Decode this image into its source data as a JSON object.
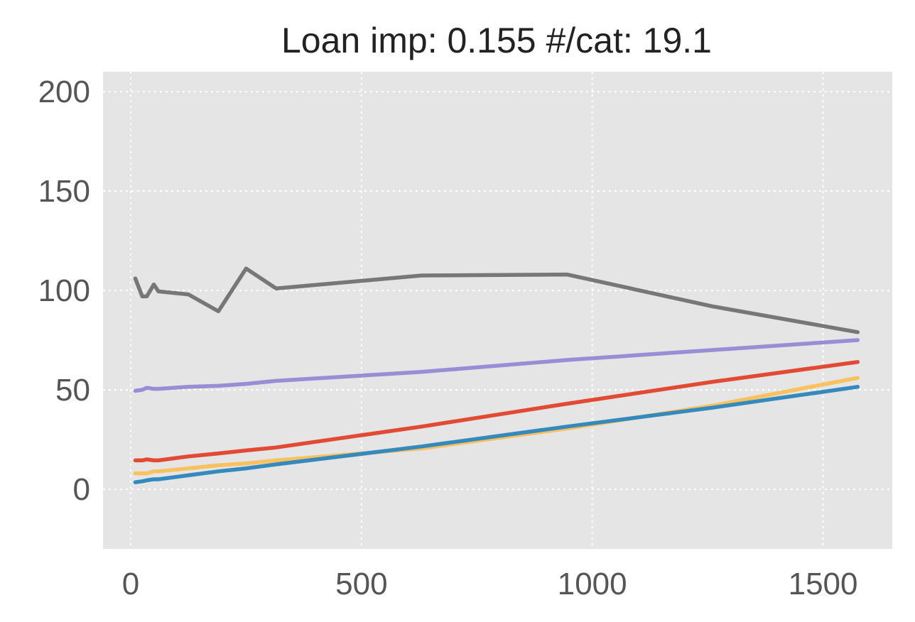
{
  "chart_data": {
    "type": "line",
    "title": "Loan imp: 0.155 #/cat: 19.1",
    "xlabel": "",
    "ylabel": "",
    "xlim": [
      -60,
      1650
    ],
    "ylim": [
      -30,
      210
    ],
    "xticks": [
      0,
      500,
      1000,
      1500
    ],
    "yticks": [
      0,
      50,
      100,
      150,
      200
    ],
    "grid": true,
    "style": "ggplot",
    "background_color": "#E5E5E5",
    "series": [
      {
        "color": "#777777",
        "x": [
          10,
          25,
          35,
          50,
          60,
          125,
          190,
          250,
          315,
          630,
          945,
          1260,
          1575
        ],
        "y": [
          106,
          97,
          97,
          103,
          99.5,
          98,
          89.5,
          111,
          101,
          107.5,
          108,
          92,
          79
        ]
      },
      {
        "color": "#988ED5",
        "x": [
          10,
          25,
          35,
          50,
          60,
          125,
          190,
          250,
          315,
          630,
          945,
          1260,
          1575
        ],
        "y": [
          49.5,
          50,
          51,
          50.5,
          50.5,
          51.5,
          52,
          53,
          54.5,
          59,
          65,
          70,
          75
        ]
      },
      {
        "color": "#E24A33",
        "x": [
          10,
          25,
          35,
          50,
          60,
          125,
          190,
          250,
          315,
          630,
          945,
          1260,
          1575
        ],
        "y": [
          14.5,
          14.5,
          15,
          14.5,
          14.5,
          16.5,
          18,
          19.5,
          21,
          31.5,
          43,
          54,
          64
        ]
      },
      {
        "color": "#FBC15E",
        "x": [
          10,
          25,
          35,
          50,
          60,
          125,
          190,
          250,
          315,
          630,
          945,
          1260,
          1575
        ],
        "y": [
          8,
          8,
          8,
          9,
          9,
          10.5,
          12,
          13,
          14.5,
          20.5,
          30.5,
          42,
          56
        ]
      },
      {
        "color": "#348ABD",
        "x": [
          10,
          25,
          35,
          50,
          60,
          125,
          190,
          250,
          315,
          630,
          945,
          1260,
          1575
        ],
        "y": [
          3.5,
          4,
          4.5,
          5,
          5,
          7,
          9,
          10.5,
          12.5,
          21.5,
          31.5,
          41,
          51.5
        ]
      }
    ]
  }
}
